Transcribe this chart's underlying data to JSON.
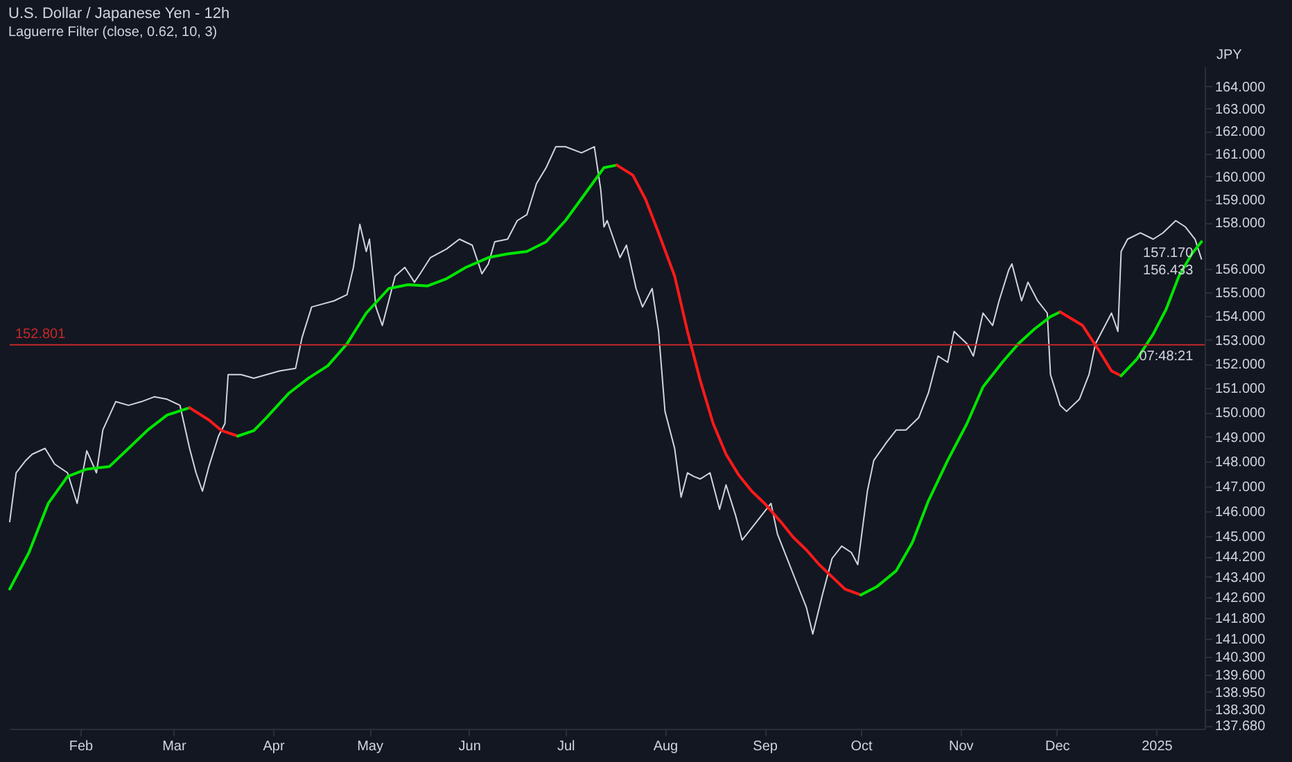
{
  "chart_data": {
    "type": "line",
    "title": "U.S. Dollar / Japanese Yen - 12h",
    "subtitle": "Laguerre Filter (close, 0.62, 10, 3)",
    "ylabel": "JPY",
    "xlim": [
      "2024-01-10",
      "2025-01-16"
    ],
    "xticks": [
      {
        "value": "2024-02-01",
        "label": "Feb"
      },
      {
        "value": "2024-03-01",
        "label": "Mar"
      },
      {
        "value": "2024-04-01",
        "label": "Apr"
      },
      {
        "value": "2024-05-01",
        "label": "May"
      },
      {
        "value": "2024-06-01",
        "label": "Jun"
      },
      {
        "value": "2024-07-01",
        "label": "Jul"
      },
      {
        "value": "2024-08-01",
        "label": "Aug"
      },
      {
        "value": "2024-09-01",
        "label": "Sep"
      },
      {
        "value": "2024-10-01",
        "label": "Oct"
      },
      {
        "value": "2024-11-01",
        "label": "Nov"
      },
      {
        "value": "2024-12-01",
        "label": "Dec"
      },
      {
        "value": "2025-01-01",
        "label": "2025"
      }
    ],
    "ylim": [
      137.56,
      164.89
    ],
    "log": true,
    "yticks": [
      {
        "value": 164,
        "label": "164.000"
      },
      {
        "value": 163,
        "label": "163.000"
      },
      {
        "value": 162,
        "label": "162.000"
      },
      {
        "value": 161,
        "label": "161.000"
      },
      {
        "value": 160,
        "label": "160.000"
      },
      {
        "value": 159,
        "label": "159.000"
      },
      {
        "value": 158,
        "label": "158.000"
      },
      {
        "value": 156,
        "label": "156.000"
      },
      {
        "value": 155,
        "label": "155.000"
      },
      {
        "value": 154,
        "label": "154.000"
      },
      {
        "value": 153,
        "label": "153.000"
      },
      {
        "value": 152,
        "label": "152.000"
      },
      {
        "value": 151,
        "label": "151.000"
      },
      {
        "value": 150,
        "label": "150.000"
      },
      {
        "value": 149,
        "label": "149.000"
      },
      {
        "value": 148,
        "label": "148.000"
      },
      {
        "value": 147,
        "label": "147.000"
      },
      {
        "value": 146,
        "label": "146.000"
      },
      {
        "value": 145,
        "label": "145.000"
      },
      {
        "value": 144.2,
        "label": "144.200"
      },
      {
        "value": 143.4,
        "label": "143.400"
      },
      {
        "value": 142.6,
        "label": "142.600"
      },
      {
        "value": 141.8,
        "label": "141.800"
      },
      {
        "value": 141,
        "label": "141.000"
      },
      {
        "value": 140.3,
        "label": "140.300"
      },
      {
        "value": 139.6,
        "label": "139.600"
      },
      {
        "value": 138.95,
        "label": "138.950"
      },
      {
        "value": 138.3,
        "label": "138.300"
      },
      {
        "value": 137.68,
        "label": "137.680"
      }
    ],
    "series": [
      {
        "color": "#d1d4dc",
        "x": [
          "2024-01-10",
          "2024-01-12",
          "2024-01-15",
          "2024-01-17",
          "2024-01-21",
          "2024-01-24",
          "2024-01-28",
          "2024-01-31",
          "2024-02-03",
          "2024-02-06",
          "2024-02-08",
          "2024-02-12",
          "2024-02-16",
          "2024-02-20",
          "2024-02-24",
          "2024-02-28",
          "2024-03-03",
          "2024-03-06",
          "2024-03-08",
          "2024-03-10",
          "2024-03-12",
          "2024-03-15",
          "2024-03-17",
          "2024-03-18",
          "2024-03-22",
          "2024-03-26",
          "2024-03-30",
          "2024-04-03",
          "2024-04-08",
          "2024-04-10",
          "2024-04-13",
          "2024-04-16",
          "2024-04-20",
          "2024-04-24",
          "2024-04-26",
          "2024-04-28",
          "2024-04-30",
          "2024-05-01",
          "2024-05-03",
          "2024-05-05",
          "2024-05-07",
          "2024-05-09",
          "2024-05-12",
          "2024-05-15",
          "2024-05-17",
          "2024-05-20",
          "2024-05-25",
          "2024-05-29",
          "2024-06-02",
          "2024-06-05",
          "2024-06-07",
          "2024-06-09",
          "2024-06-13",
          "2024-06-16",
          "2024-06-19",
          "2024-06-22",
          "2024-06-25",
          "2024-06-28",
          "2024-07-01",
          "2024-07-06",
          "2024-07-10",
          "2024-07-12",
          "2024-07-13",
          "2024-07-14",
          "2024-07-16",
          "2024-07-18",
          "2024-07-20",
          "2024-07-23",
          "2024-07-25",
          "2024-07-28",
          "2024-07-30",
          "2024-08-01",
          "2024-08-04",
          "2024-08-06",
          "2024-08-08",
          "2024-08-10",
          "2024-08-12",
          "2024-08-15",
          "2024-08-18",
          "2024-08-20",
          "2024-08-23",
          "2024-08-25",
          "2024-08-28",
          "2024-08-31",
          "2024-09-03",
          "2024-09-05",
          "2024-09-08",
          "2024-09-11",
          "2024-09-14",
          "2024-09-16",
          "2024-09-19",
          "2024-09-22",
          "2024-09-25",
          "2024-09-28",
          "2024-09-30",
          "2024-10-03",
          "2024-10-05",
          "2024-10-09",
          "2024-10-12",
          "2024-10-15",
          "2024-10-19",
          "2024-10-22",
          "2024-10-25",
          "2024-10-28",
          "2024-10-30",
          "2024-11-03",
          "2024-11-05",
          "2024-11-08",
          "2024-11-11",
          "2024-11-13",
          "2024-11-16",
          "2024-11-17",
          "2024-11-20",
          "2024-11-22",
          "2024-11-25",
          "2024-11-28",
          "2024-11-29",
          "2024-12-02",
          "2024-12-04",
          "2024-12-08",
          "2024-12-11",
          "2024-12-13",
          "2024-12-16",
          "2024-12-18",
          "2024-12-20",
          "2024-12-21",
          "2024-12-23",
          "2024-12-27",
          "2024-12-31",
          "2025-01-03",
          "2025-01-07",
          "2025-01-10",
          "2025-01-13",
          "2025-01-15"
        ],
        "values": [
          145.58,
          147.54,
          148.04,
          148.29,
          148.53,
          147.89,
          147.54,
          146.31,
          148.43,
          147.54,
          149.28,
          150.44,
          150.29,
          150.44,
          150.64,
          150.54,
          150.29,
          148.53,
          147.54,
          146.8,
          147.79,
          149.03,
          149.54,
          151.56,
          151.56,
          151.41,
          151.56,
          151.71,
          151.82,
          153.1,
          154.39,
          154.5,
          154.65,
          154.91,
          156.07,
          157.92,
          156.75,
          157.28,
          154.39,
          153.61,
          154.65,
          155.7,
          156.07,
          155.44,
          155.85,
          156.49,
          156.86,
          157.28,
          157.02,
          155.8,
          156.22,
          157.17,
          157.28,
          158.08,
          158.34,
          159.69,
          160.39,
          161.31,
          161.31,
          161.04,
          161.31,
          159.42,
          157.81,
          158.08,
          157.28,
          156.49,
          157.02,
          155.17,
          154.39,
          155.17,
          153.36,
          150.04,
          148.53,
          146.56,
          147.54,
          147.39,
          147.29,
          147.54,
          146.07,
          147.05,
          145.82,
          144.85,
          145.33,
          145.82,
          146.31,
          145.09,
          144.12,
          143.16,
          142.21,
          141.17,
          142.69,
          144.12,
          144.61,
          144.36,
          143.88,
          146.8,
          148.04,
          148.78,
          149.28,
          149.28,
          149.79,
          150.8,
          152.33,
          152.07,
          153.36,
          152.84,
          152.33,
          154.13,
          153.61,
          154.65,
          155.96,
          156.22,
          154.65,
          155.44,
          154.65,
          154.13,
          151.56,
          150.29,
          150.04,
          150.54,
          151.56,
          152.84,
          153.61,
          154.13,
          153.36,
          156.75,
          157.28,
          157.55,
          157.28,
          157.55,
          158.08,
          157.81,
          157.28,
          156.43
        ]
      },
      {
        "color": "#00e600",
        "x": [
          "2024-01-10",
          "2024-01-16",
          "2024-01-22",
          "2024-01-28",
          "2024-02-03",
          "2024-02-10",
          "2024-02-16",
          "2024-02-22",
          "2024-02-28",
          "2024-03-06"
        ],
        "values": [
          142.92,
          144.36,
          146.31,
          147.39,
          147.69,
          147.79,
          148.53,
          149.28,
          149.89,
          150.19
        ]
      },
      {
        "color": "#ff1a1a",
        "x": [
          "2024-03-06",
          "2024-03-12",
          "2024-03-16",
          "2024-03-21"
        ],
        "values": [
          150.19,
          149.69,
          149.25,
          149.03
        ]
      },
      {
        "color": "#00e600",
        "x": [
          "2024-03-21",
          "2024-03-26",
          "2024-03-30",
          "2024-04-06",
          "2024-04-12",
          "2024-04-18",
          "2024-04-24",
          "2024-04-30",
          "2024-05-07",
          "2024-05-13",
          "2024-05-19",
          "2024-05-25",
          "2024-05-31",
          "2024-06-07",
          "2024-06-13",
          "2024-06-19",
          "2024-06-25",
          "2024-07-01",
          "2024-07-08",
          "2024-07-13",
          "2024-07-17"
        ],
        "values": [
          149.03,
          149.25,
          149.79,
          150.8,
          151.41,
          151.92,
          152.84,
          154.13,
          155.17,
          155.33,
          155.28,
          155.59,
          156.07,
          156.49,
          156.65,
          156.75,
          157.17,
          158.08,
          159.42,
          160.39,
          160.5
        ]
      },
      {
        "color": "#ff1a1a",
        "x": [
          "2024-07-17",
          "2024-07-22",
          "2024-07-26",
          "2024-07-30",
          "2024-08-04",
          "2024-08-08",
          "2024-08-12",
          "2024-08-16",
          "2024-08-20",
          "2024-08-24",
          "2024-08-28",
          "2024-09-01",
          "2024-09-06",
          "2024-09-10",
          "2024-09-14",
          "2024-09-18",
          "2024-09-22",
          "2024-09-26",
          "2024-10-01"
        ],
        "values": [
          160.5,
          160.06,
          158.99,
          157.55,
          155.7,
          153.36,
          151.3,
          149.54,
          148.29,
          147.44,
          146.8,
          146.31,
          145.58,
          144.95,
          144.46,
          143.88,
          143.4,
          142.92,
          142.69
        ]
      },
      {
        "color": "#00e600",
        "x": [
          "2024-10-01",
          "2024-10-06",
          "2024-10-12",
          "2024-10-17",
          "2024-10-22",
          "2024-10-28",
          "2024-11-03",
          "2024-11-08",
          "2024-11-14",
          "2024-11-19",
          "2024-11-24",
          "2024-11-29",
          "2024-12-02"
        ],
        "values": [
          142.69,
          143.02,
          143.64,
          144.75,
          146.41,
          148.04,
          149.54,
          151.05,
          152.07,
          152.84,
          153.46,
          153.98,
          154.18
        ]
      },
      {
        "color": "#ff1a1a",
        "x": [
          "2024-12-02",
          "2024-12-09",
          "2024-12-14",
          "2024-12-18",
          "2024-12-21"
        ],
        "values": [
          154.18,
          153.61,
          152.58,
          151.71,
          151.51
        ]
      },
      {
        "color": "#00e600",
        "x": [
          "2024-12-21",
          "2024-12-26",
          "2024-12-31",
          "2025-01-04",
          "2025-01-08",
          "2025-01-12",
          "2025-01-15"
        ],
        "values": [
          151.51,
          152.22,
          153.25,
          154.29,
          155.7,
          156.65,
          157.17
        ]
      }
    ],
    "ref_lines": [
      {
        "axis": "y",
        "value": 152.801,
        "label": "152.801",
        "color": "#c62828"
      }
    ],
    "annotations": [
      {
        "text": "157.170",
        "x": "2025-01-15",
        "y": 157.17
      },
      {
        "text": "156.433",
        "x": "2025-01-15",
        "y": 156.43
      },
      {
        "text": "07:48:21",
        "x": "2025-01-15",
        "y": 152.801
      }
    ]
  }
}
